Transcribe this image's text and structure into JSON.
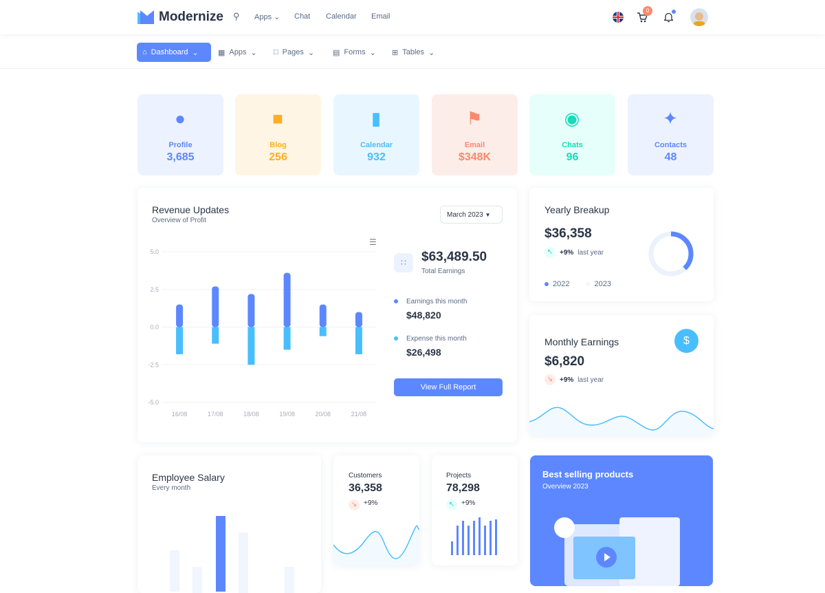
{
  "header": {
    "brand": "Modernize",
    "links": [
      "Apps",
      "Chat",
      "Calendar",
      "Email"
    ],
    "cart_count": "0"
  },
  "nav": {
    "items": [
      "Dashboard",
      "Apps",
      "Pages",
      "Forms",
      "Tables"
    ]
  },
  "stats": [
    {
      "label": "Profile",
      "value": "3,685",
      "bg": "#ecf2ff",
      "color": "#5d87ff"
    },
    {
      "label": "Blog",
      "value": "256",
      "bg": "#fef5e5",
      "color": "#ffae1f"
    },
    {
      "label": "Calendar",
      "value": "932",
      "bg": "#e8f7ff",
      "color": "#49beff"
    },
    {
      "label": "Email",
      "value": "$348K",
      "bg": "#fdede8",
      "color": "#fa896b"
    },
    {
      "label": "Chats",
      "value": "96",
      "bg": "#e6fffa",
      "color": "#13deb9"
    },
    {
      "label": "Contacts",
      "value": "48",
      "bg": "#ecf2ff",
      "color": "#5d87ff"
    }
  ],
  "revenue": {
    "title": "Revenue Updates",
    "subtitle": "Overview of Profit",
    "period": "March 2023",
    "total": "$63,489.50",
    "total_label": "Total Earnings",
    "earnings_label": "Earnings this month",
    "earnings": "$48,820",
    "expense_label": "Expense this month",
    "expense": "$26,498",
    "button": "View Full Report"
  },
  "chart_data": {
    "type": "bar",
    "categories": [
      "16/08",
      "17/08",
      "18/08",
      "19/08",
      "20/08",
      "21/08"
    ],
    "series": [
      {
        "values": [
          1.5,
          2.7,
          2.2,
          3.6,
          1.5,
          1.0
        ],
        "color": "#5d87ff"
      },
      {
        "values": [
          -1.8,
          -1.1,
          -2.5,
          -1.5,
          -0.6,
          -1.8
        ],
        "color": "#49beff"
      }
    ],
    "yticks": [
      "5.0",
      "2.5",
      "0.0",
      "-2.5",
      "-5.0"
    ],
    "ylim": [
      -5,
      5
    ],
    "grid": true,
    "stacked": true
  },
  "yearly": {
    "title": "Yearly Breakup",
    "value": "$36,358",
    "change": "+9%",
    "period": "last year",
    "legend": [
      "2022",
      "2023"
    ],
    "donut_fraction": 0.38
  },
  "monthly": {
    "title": "Monthly Earnings",
    "value": "$6,820",
    "change": "+9%",
    "period": "last year"
  },
  "salary": {
    "title": "Employee Salary",
    "subtitle": "Every month"
  },
  "customers": {
    "title": "Customers",
    "value": "36,358",
    "change": "+9%"
  },
  "projects": {
    "title": "Projects",
    "value": "78,298",
    "change": "+9%"
  },
  "best": {
    "title": "Best selling products",
    "subtitle": "Overview 2023"
  }
}
